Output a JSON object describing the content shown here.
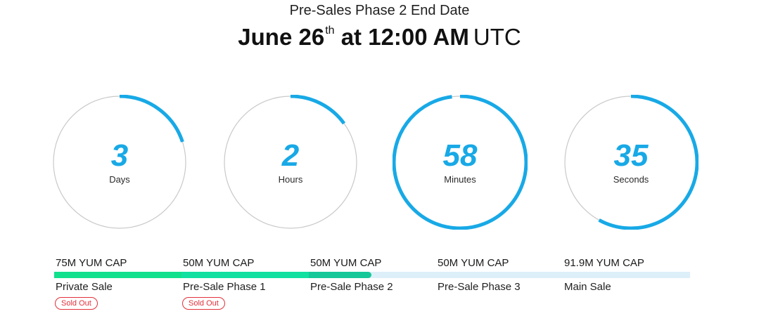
{
  "header": {
    "subtitle": "Pre-Sales Phase 2 End Date",
    "date_main": "June 26",
    "date_suffix": "th",
    "date_time": "at 12:00 AM",
    "timezone": "UTC"
  },
  "countdown": [
    {
      "value": "3",
      "unit": "Days",
      "progress": 0.2
    },
    {
      "value": "2",
      "unit": "Hours",
      "progress": 0.15
    },
    {
      "value": "58",
      "unit": "Minutes",
      "progress": 0.98
    },
    {
      "value": "35",
      "unit": "Seconds",
      "progress": 0.58
    }
  ],
  "phases": [
    {
      "cap": "75M YUM CAP",
      "name": "Private Sale",
      "status": "Sold Out",
      "fill": 1.0,
      "fill_color": "#11e08c"
    },
    {
      "cap": "50M YUM CAP",
      "name": "Pre-Sale Phase 1",
      "status": "Sold Out",
      "fill": 1.0,
      "fill_color": "#11e0a0"
    },
    {
      "cap": "50M YUM CAP",
      "name": "Pre-Sale Phase 2",
      "fill": 0.49,
      "fill_color": "#16c898"
    },
    {
      "cap": "50M YUM CAP",
      "name": "Pre-Sale Phase 3",
      "fill": 0
    },
    {
      "cap": "91.9M YUM CAP",
      "name": "Main Sale",
      "fill": 0
    }
  ],
  "colors": {
    "accent": "#18a9e6",
    "ring_track": "#c9c9c9",
    "sold_out": "#e2303a",
    "progress_green": "#11e08c",
    "bar_track": "#ddeff8"
  }
}
